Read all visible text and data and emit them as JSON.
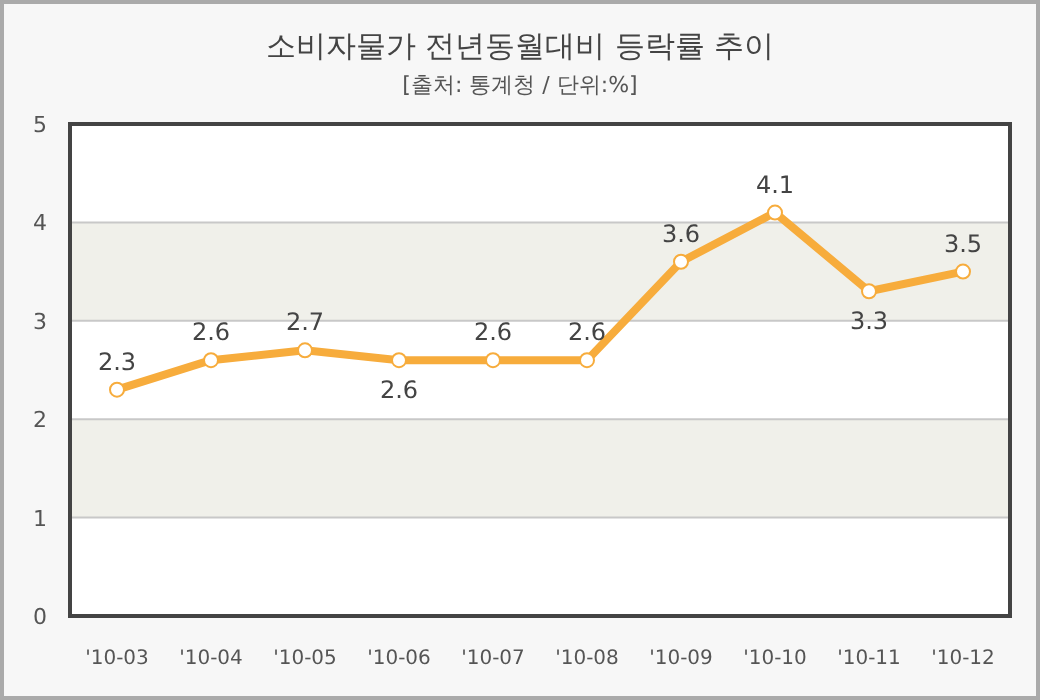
{
  "chart_data": {
    "type": "line",
    "title": "소비자물가 전년동월대비 등락률 추이",
    "subtitle": "[출처: 통계청 / 단위:%]",
    "categories": [
      "'10-03",
      "'10-04",
      "'10-05",
      "'10-06",
      "'10-07",
      "'10-08",
      "'10-09",
      "'10-10",
      "'10-11",
      "'10-12"
    ],
    "series": [
      {
        "color": "#f7ac3c",
        "values": [
          2.3,
          2.6,
          2.7,
          2.6,
          2.6,
          2.6,
          3.6,
          4.1,
          3.3,
          3.5
        ]
      }
    ],
    "ylim": [
      0,
      5
    ],
    "yticks": [
      0,
      1,
      2,
      3,
      4,
      5
    ],
    "grid": "y",
    "marker": "circle",
    "line_style": "solid",
    "data_labels": true,
    "bands": [
      {
        "axis": "y",
        "from": 1,
        "to": 2,
        "color": "#f0f0ea"
      },
      {
        "axis": "y",
        "from": 3,
        "to": 4,
        "color": "#f0f0ea"
      }
    ]
  }
}
